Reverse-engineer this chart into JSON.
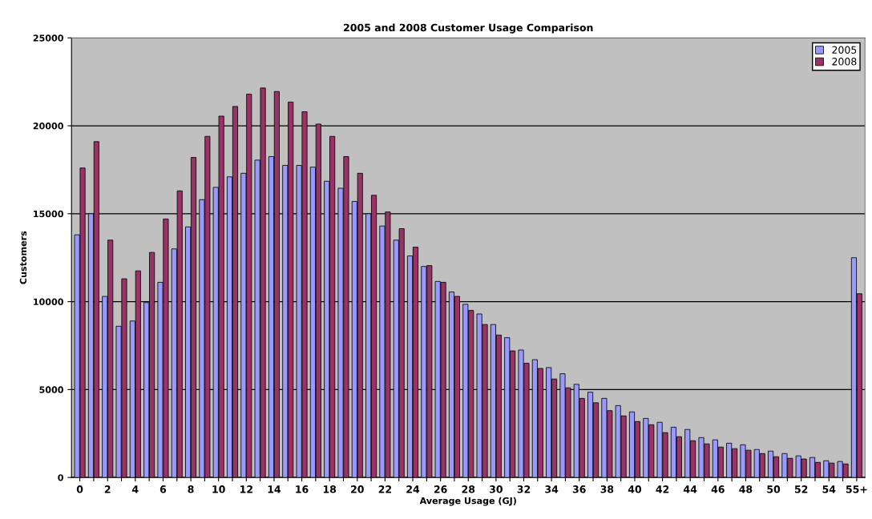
{
  "chart_data": {
    "type": "bar",
    "title": "2005 and 2008 Customer Usage Comparison",
    "xlabel": "Average Usage (GJ)",
    "ylabel": "Customers",
    "categories": [
      "0",
      null,
      "2",
      null,
      "4",
      null,
      "6",
      null,
      "8",
      null,
      "10",
      null,
      "12",
      null,
      "14",
      null,
      "16",
      null,
      "18",
      null,
      "20",
      null,
      "22",
      null,
      "24",
      null,
      "26",
      null,
      "28",
      null,
      "30",
      null,
      "32",
      null,
      "34",
      null,
      "36",
      null,
      "38",
      null,
      "40",
      null,
      "42",
      null,
      "44",
      null,
      "46",
      null,
      "48",
      null,
      "50",
      null,
      "52",
      null,
      "54",
      null,
      "55+"
    ],
    "series": [
      {
        "name": "2005",
        "color": "#9999ff",
        "values": [
          13800,
          15000,
          10300,
          8600,
          8900,
          9950,
          11100,
          13000,
          14250,
          15800,
          16500,
          17100,
          17300,
          18050,
          18250,
          17750,
          17750,
          17650,
          16850,
          16450,
          15700,
          15000,
          14300,
          13500,
          12600,
          12000,
          11150,
          10550,
          9850,
          9300,
          8700,
          7950,
          7250,
          6700,
          6250,
          5900,
          5300,
          4850,
          4500,
          4090,
          3730,
          3360,
          3140,
          2860,
          2730,
          2270,
          2140,
          1950,
          1860,
          1590,
          1500,
          1360,
          1230,
          1140,
          950,
          910,
          12500
        ]
      },
      {
        "name": "2008",
        "color": "#993366",
        "values": [
          17600,
          19100,
          13500,
          11300,
          11750,
          12800,
          14700,
          16300,
          18200,
          19400,
          20550,
          21100,
          21800,
          22150,
          21950,
          21350,
          20800,
          20100,
          19400,
          18250,
          17300,
          16050,
          15100,
          14150,
          13100,
          12050,
          11100,
          10300,
          9500,
          8700,
          8100,
          7200,
          6500,
          6200,
          5600,
          5100,
          4500,
          4250,
          3800,
          3500,
          3180,
          3000,
          2550,
          2320,
          2090,
          1910,
          1730,
          1640,
          1550,
          1360,
          1180,
          1090,
          1050,
          860,
          820,
          770,
          10450
        ]
      }
    ],
    "ylim": [
      0,
      25000
    ],
    "yticks": [
      0,
      5000,
      10000,
      15000,
      20000,
      25000
    ],
    "grid": "y",
    "legend": "top right"
  }
}
